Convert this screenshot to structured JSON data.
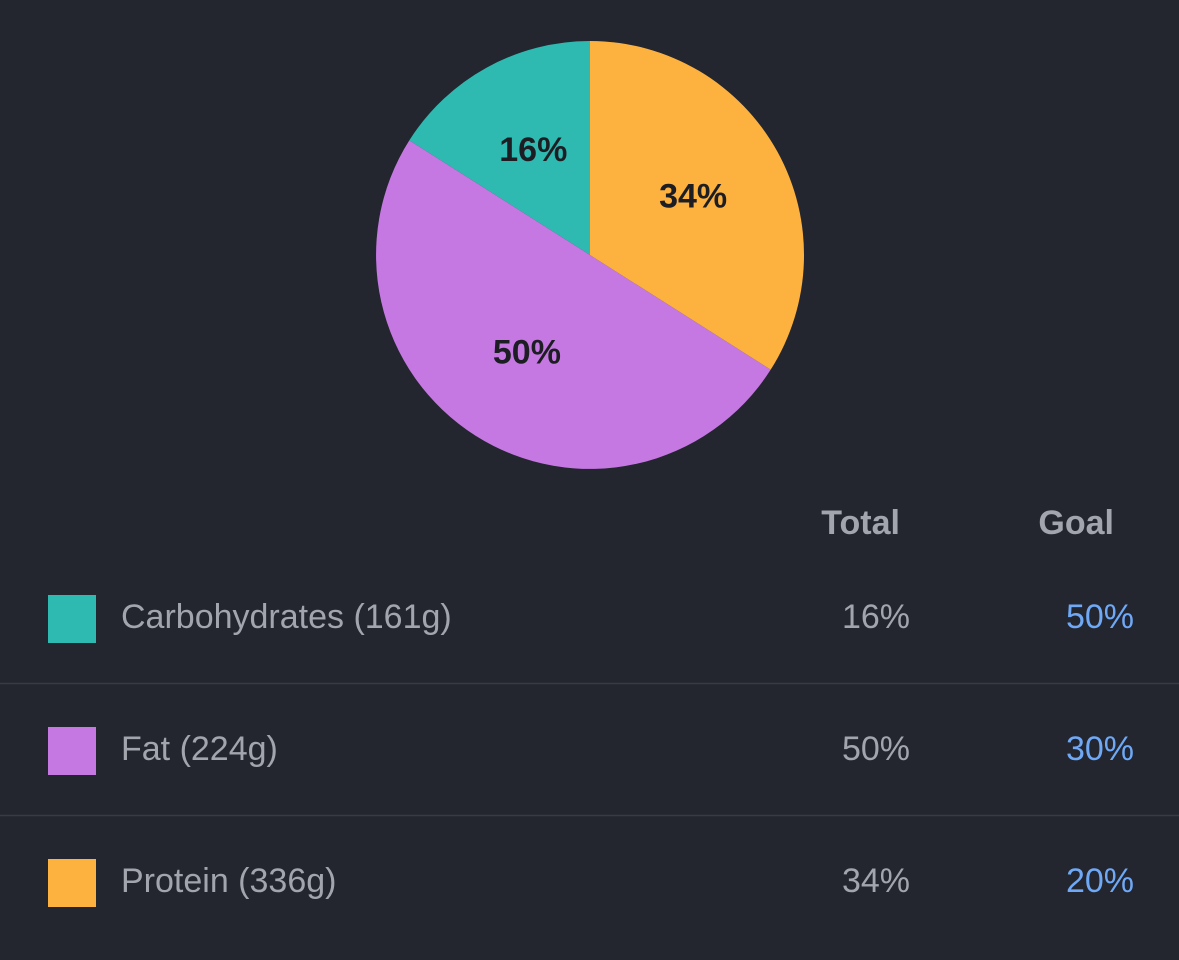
{
  "chart_data": {
    "type": "pie",
    "categories": [
      "Carbohydrates (161g)",
      "Fat (224g)",
      "Protein (336g)"
    ],
    "values": [
      16,
      50,
      34
    ],
    "value_labels": [
      "16%",
      "50%",
      "34%"
    ],
    "colors": [
      "#2fbab1",
      "#c678e2",
      "#fdb240"
    ],
    "direction": "counterclockwise"
  },
  "table": {
    "header": [
      "Total",
      "Goal"
    ],
    "goals": [
      "50%",
      "30%",
      "20%"
    ]
  }
}
